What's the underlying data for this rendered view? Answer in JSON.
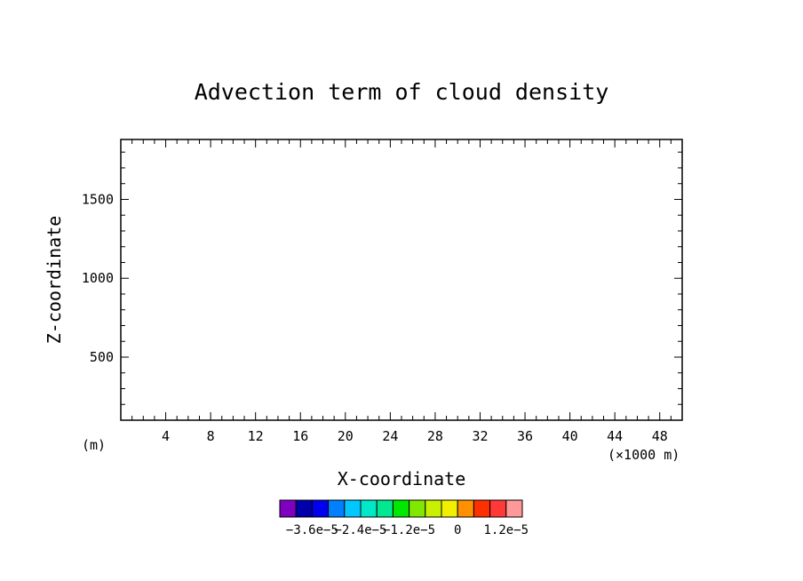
{
  "chart_data": {
    "type": "heatmap",
    "title": "Advection term of cloud density",
    "xlabel": "X-coordinate",
    "ylabel": "Z-coordinate",
    "x_unit": "(×1000 m)",
    "y_unit": "(m)",
    "xlim": [
      0,
      50
    ],
    "ylim": [
      100,
      1880
    ],
    "x_ticks": [
      4,
      8,
      12,
      16,
      20,
      24,
      28,
      32,
      36,
      40,
      44,
      48
    ],
    "x_tick_labels": [
      "4",
      "8",
      "12",
      "16",
      "20",
      "24",
      "28",
      "32",
      "36",
      "40",
      "44",
      "48"
    ],
    "y_ticks": [
      500,
      1000,
      1500
    ],
    "y_tick_labels": [
      "500",
      "1000",
      "1500"
    ],
    "grid": false,
    "series": [],
    "colorbar": {
      "colors": [
        "#7f00bf",
        "#0000aa",
        "#0000ee",
        "#0080ff",
        "#00c8ff",
        "#00e8c8",
        "#00e890",
        "#00e800",
        "#80e800",
        "#c8f000",
        "#f0f000",
        "#ff9000",
        "#ff3000",
        "#ff3838",
        "#ff9898"
      ],
      "labels": [
        "−3.6e−5",
        "−2.4e−5",
        "−1.2e−5",
        "0",
        "1.2e−5"
      ]
    }
  }
}
